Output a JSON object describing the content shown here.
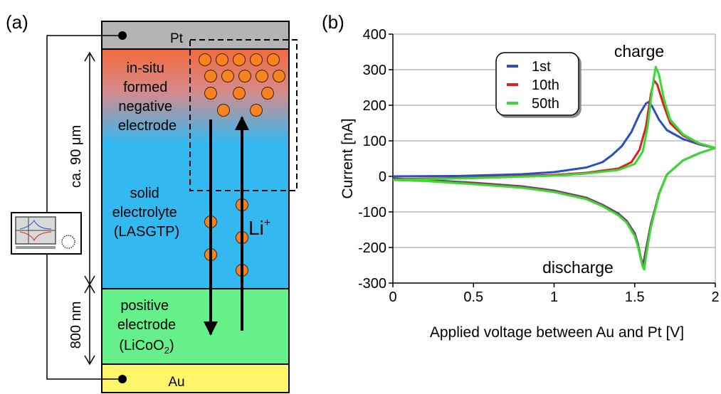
{
  "panel_a": {
    "label": "(a)",
    "layers": {
      "top": "Pt",
      "negative_lines": [
        "in-situ",
        "formed",
        "negative",
        "electrode"
      ],
      "electrolyte_lines": [
        "solid",
        "electrolyte",
        "(LASGTP)"
      ],
      "positive_lines": [
        "positive",
        "electrode"
      ],
      "positive_formula": {
        "prefix": "(LiCoO",
        "sub": "2",
        "suffix": ")"
      },
      "bottom": "Au"
    },
    "dimensions": {
      "thick": "ca. 90 μm",
      "thin": "800 nm"
    },
    "ion": {
      "symbol": "Li",
      "charge": "+"
    }
  },
  "panel_b": {
    "label": "(b)"
  },
  "chart_data": {
    "type": "line",
    "xlabel": "Applied voltage between Au and Pt [V]",
    "ylabel": "Current [nA]",
    "xlim": [
      0,
      2
    ],
    "ylim": [
      -300,
      400
    ],
    "xticks": [
      0,
      0.5,
      1,
      1.5,
      2
    ],
    "xtick_labels": [
      "0",
      "0.5",
      "1",
      "1.5",
      "2"
    ],
    "yticks": [
      -300,
      -200,
      -100,
      0,
      100,
      200,
      300,
      400
    ],
    "ytick_labels": [
      "-300",
      "-200",
      "-100",
      "0",
      "100",
      "200",
      "300",
      "400"
    ],
    "grid": "horizontal",
    "legend_position": "top-center",
    "annotations": [
      "charge",
      "discharge"
    ],
    "series": [
      {
        "name": "1st",
        "color": "#2b4fbe",
        "charge": [
          [
            0,
            0
          ],
          [
            0.4,
            1
          ],
          [
            0.8,
            6
          ],
          [
            1.0,
            12
          ],
          [
            1.2,
            25
          ],
          [
            1.3,
            40
          ],
          [
            1.36,
            60
          ],
          [
            1.42,
            85
          ],
          [
            1.48,
            125
          ],
          [
            1.53,
            175
          ],
          [
            1.57,
            205
          ],
          [
            1.59,
            210
          ],
          [
            1.61,
            195
          ],
          [
            1.65,
            160
          ],
          [
            1.7,
            130
          ],
          [
            1.8,
            105
          ],
          [
            1.9,
            90
          ],
          [
            2.0,
            80
          ]
        ],
        "discharge": [
          [
            2.0,
            80
          ],
          [
            1.9,
            65
          ],
          [
            1.8,
            45
          ],
          [
            1.7,
            5
          ],
          [
            1.65,
            -50
          ],
          [
            1.6,
            -135
          ],
          [
            1.57,
            -205
          ],
          [
            1.555,
            -242
          ],
          [
            1.54,
            -235
          ],
          [
            1.52,
            -190
          ],
          [
            1.5,
            -160
          ],
          [
            1.45,
            -125
          ],
          [
            1.4,
            -105
          ],
          [
            1.3,
            -80
          ],
          [
            1.2,
            -60
          ],
          [
            1.0,
            -40
          ],
          [
            0.8,
            -28
          ],
          [
            0.5,
            -18
          ],
          [
            0.2,
            -10
          ],
          [
            0,
            -6
          ]
        ]
      },
      {
        "name": "10th",
        "color": "#e02020",
        "charge": [
          [
            0,
            -8
          ],
          [
            0.5,
            -4
          ],
          [
            1.0,
            4
          ],
          [
            1.2,
            10
          ],
          [
            1.4,
            22
          ],
          [
            1.48,
            40
          ],
          [
            1.53,
            75
          ],
          [
            1.57,
            140
          ],
          [
            1.6,
            230
          ],
          [
            1.62,
            270
          ],
          [
            1.64,
            258
          ],
          [
            1.68,
            200
          ],
          [
            1.72,
            150
          ],
          [
            1.8,
            115
          ],
          [
            1.9,
            92
          ],
          [
            2.0,
            80
          ]
        ],
        "discharge": [
          [
            2.0,
            80
          ],
          [
            1.9,
            65
          ],
          [
            1.8,
            45
          ],
          [
            1.7,
            5
          ],
          [
            1.65,
            -50
          ],
          [
            1.6,
            -140
          ],
          [
            1.57,
            -215
          ],
          [
            1.56,
            -255
          ],
          [
            1.55,
            -250
          ],
          [
            1.52,
            -195
          ],
          [
            1.5,
            -165
          ],
          [
            1.45,
            -128
          ],
          [
            1.4,
            -108
          ],
          [
            1.3,
            -82
          ],
          [
            1.2,
            -62
          ],
          [
            1.0,
            -42
          ],
          [
            0.8,
            -30
          ],
          [
            0.5,
            -20
          ],
          [
            0.2,
            -12
          ],
          [
            0,
            -8
          ]
        ]
      },
      {
        "name": "50th",
        "color": "#33dd33",
        "charge": [
          [
            0,
            -10
          ],
          [
            0.5,
            -5
          ],
          [
            1.0,
            2
          ],
          [
            1.2,
            8
          ],
          [
            1.4,
            18
          ],
          [
            1.5,
            35
          ],
          [
            1.55,
            70
          ],
          [
            1.58,
            140
          ],
          [
            1.61,
            250
          ],
          [
            1.63,
            308
          ],
          [
            1.65,
            288
          ],
          [
            1.68,
            220
          ],
          [
            1.72,
            160
          ],
          [
            1.8,
            118
          ],
          [
            1.9,
            93
          ],
          [
            2.0,
            80
          ]
        ],
        "discharge": [
          [
            2.0,
            80
          ],
          [
            1.9,
            65
          ],
          [
            1.8,
            45
          ],
          [
            1.7,
            5
          ],
          [
            1.65,
            -52
          ],
          [
            1.6,
            -145
          ],
          [
            1.57,
            -225
          ],
          [
            1.56,
            -262
          ],
          [
            1.55,
            -255
          ],
          [
            1.52,
            -198
          ],
          [
            1.5,
            -168
          ],
          [
            1.45,
            -130
          ],
          [
            1.4,
            -110
          ],
          [
            1.3,
            -84
          ],
          [
            1.2,
            -64
          ],
          [
            1.0,
            -44
          ],
          [
            0.8,
            -32
          ],
          [
            0.5,
            -22
          ],
          [
            0.2,
            -13
          ],
          [
            0,
            -10
          ]
        ]
      }
    ]
  }
}
